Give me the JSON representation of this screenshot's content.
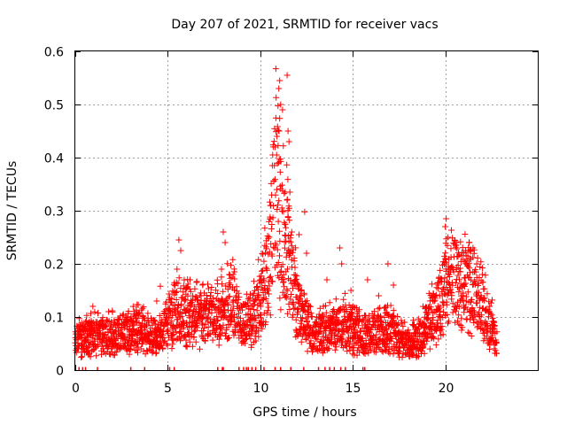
{
  "chart_data": {
    "type": "scatter",
    "title": "Day 207 of 2021, SRMTID for receiver vacs",
    "xlabel": "GPS time / hours",
    "ylabel": "SRMTID / TECUs",
    "xlim": [
      0,
      25
    ],
    "ylim": [
      0,
      0.6
    ],
    "xticks": [
      0,
      5,
      10,
      15,
      20
    ],
    "xtick_labels": [
      "0",
      "5",
      "10",
      "15",
      "20"
    ],
    "yticks": [
      0,
      0.1,
      0.2,
      0.3,
      0.4,
      0.5,
      0.6
    ],
    "ytick_labels": [
      "0",
      "0.1",
      "0.2",
      "0.3",
      "0.4",
      "0.5",
      "0.6"
    ],
    "grid": true,
    "marker": "+",
    "color": "#ff0000",
    "series": [
      {
        "name": "SRMTID",
        "envelope": [
          [
            0.0,
            0.06
          ],
          [
            0.5,
            0.06
          ],
          [
            1.0,
            0.065
          ],
          [
            1.5,
            0.062
          ],
          [
            2.0,
            0.066
          ],
          [
            2.5,
            0.068
          ],
          [
            3.0,
            0.072
          ],
          [
            3.5,
            0.075
          ],
          [
            4.0,
            0.065
          ],
          [
            4.5,
            0.058
          ],
          [
            5.0,
            0.09
          ],
          [
            5.5,
            0.11
          ],
          [
            6.0,
            0.105
          ],
          [
            6.5,
            0.1
          ],
          [
            7.0,
            0.095
          ],
          [
            7.5,
            0.1
          ],
          [
            8.0,
            0.11
          ],
          [
            8.5,
            0.13
          ],
          [
            9.0,
            0.09
          ],
          [
            9.5,
            0.095
          ],
          [
            10.0,
            0.12
          ],
          [
            10.5,
            0.2
          ],
          [
            10.8,
            0.35
          ],
          [
            11.0,
            0.3
          ],
          [
            11.3,
            0.25
          ],
          [
            11.6,
            0.2
          ],
          [
            12.0,
            0.12
          ],
          [
            12.5,
            0.09
          ],
          [
            13.0,
            0.07
          ],
          [
            13.5,
            0.075
          ],
          [
            14.0,
            0.08
          ],
          [
            14.5,
            0.09
          ],
          [
            15.0,
            0.07
          ],
          [
            15.5,
            0.07
          ],
          [
            16.0,
            0.065
          ],
          [
            16.5,
            0.07
          ],
          [
            17.0,
            0.075
          ],
          [
            17.5,
            0.06
          ],
          [
            18.0,
            0.05
          ],
          [
            18.5,
            0.06
          ],
          [
            19.0,
            0.08
          ],
          [
            19.5,
            0.11
          ],
          [
            20.0,
            0.15
          ],
          [
            20.5,
            0.17
          ],
          [
            21.0,
            0.15
          ],
          [
            21.5,
            0.16
          ],
          [
            22.0,
            0.12
          ],
          [
            22.5,
            0.08
          ],
          [
            22.8,
            0.05
          ]
        ],
        "spikes": [
          [
            0.15,
            0.082
          ],
          [
            0.95,
            0.12
          ],
          [
            1.8,
            0.11
          ],
          [
            2.6,
            0.105
          ],
          [
            3.3,
            0.11
          ],
          [
            4.4,
            0.13
          ],
          [
            4.6,
            0.158
          ],
          [
            5.5,
            0.19
          ],
          [
            5.6,
            0.245
          ],
          [
            5.7,
            0.225
          ],
          [
            6.2,
            0.17
          ],
          [
            6.8,
            0.14
          ],
          [
            7.9,
            0.19
          ],
          [
            8.0,
            0.26
          ],
          [
            8.1,
            0.24
          ],
          [
            8.6,
            0.185
          ],
          [
            9.2,
            0.125
          ],
          [
            9.9,
            0.208
          ],
          [
            10.0,
            0.17
          ],
          [
            10.55,
            0.31
          ],
          [
            10.65,
            0.385
          ],
          [
            10.8,
            0.42
          ],
          [
            10.9,
            0.44
          ],
          [
            11.0,
            0.53
          ],
          [
            11.05,
            0.545
          ],
          [
            11.1,
            0.5
          ],
          [
            11.2,
            0.49
          ],
          [
            11.45,
            0.555
          ],
          [
            11.5,
            0.45
          ],
          [
            11.55,
            0.43
          ],
          [
            11.6,
            0.335
          ],
          [
            11.7,
            0.26
          ],
          [
            11.9,
            0.17
          ],
          [
            12.1,
            0.255
          ],
          [
            12.4,
            0.298
          ],
          [
            12.5,
            0.22
          ],
          [
            13.6,
            0.17
          ],
          [
            13.8,
            0.1
          ],
          [
            14.3,
            0.23
          ],
          [
            14.4,
            0.2
          ],
          [
            14.9,
            0.15
          ],
          [
            15.0,
            0.12
          ],
          [
            15.8,
            0.17
          ],
          [
            16.4,
            0.14
          ],
          [
            16.9,
            0.2
          ],
          [
            17.2,
            0.16
          ],
          [
            17.8,
            0.09
          ],
          [
            18.6,
            0.07
          ],
          [
            19.4,
            0.11
          ],
          [
            19.7,
            0.14
          ],
          [
            20.0,
            0.27
          ],
          [
            20.05,
            0.285
          ],
          [
            20.15,
            0.25
          ],
          [
            20.6,
            0.24
          ],
          [
            21.1,
            0.225
          ],
          [
            21.3,
            0.24
          ],
          [
            21.5,
            0.23
          ],
          [
            21.7,
            0.2
          ],
          [
            22.0,
            0.18
          ],
          [
            22.4,
            0.12
          ]
        ],
        "zero_markers": [
          0.2,
          0.4,
          0.55,
          1.2,
          3.0,
          3.75,
          5.1,
          5.35,
          7.7,
          7.95,
          8.0,
          8.85,
          9.1,
          9.25,
          9.35,
          9.55,
          9.75,
          10.2,
          10.8,
          11.1,
          11.65,
          12.35,
          13.15,
          13.5,
          13.75,
          14.0,
          14.35,
          14.6,
          15.55,
          15.65
        ]
      }
    ]
  }
}
